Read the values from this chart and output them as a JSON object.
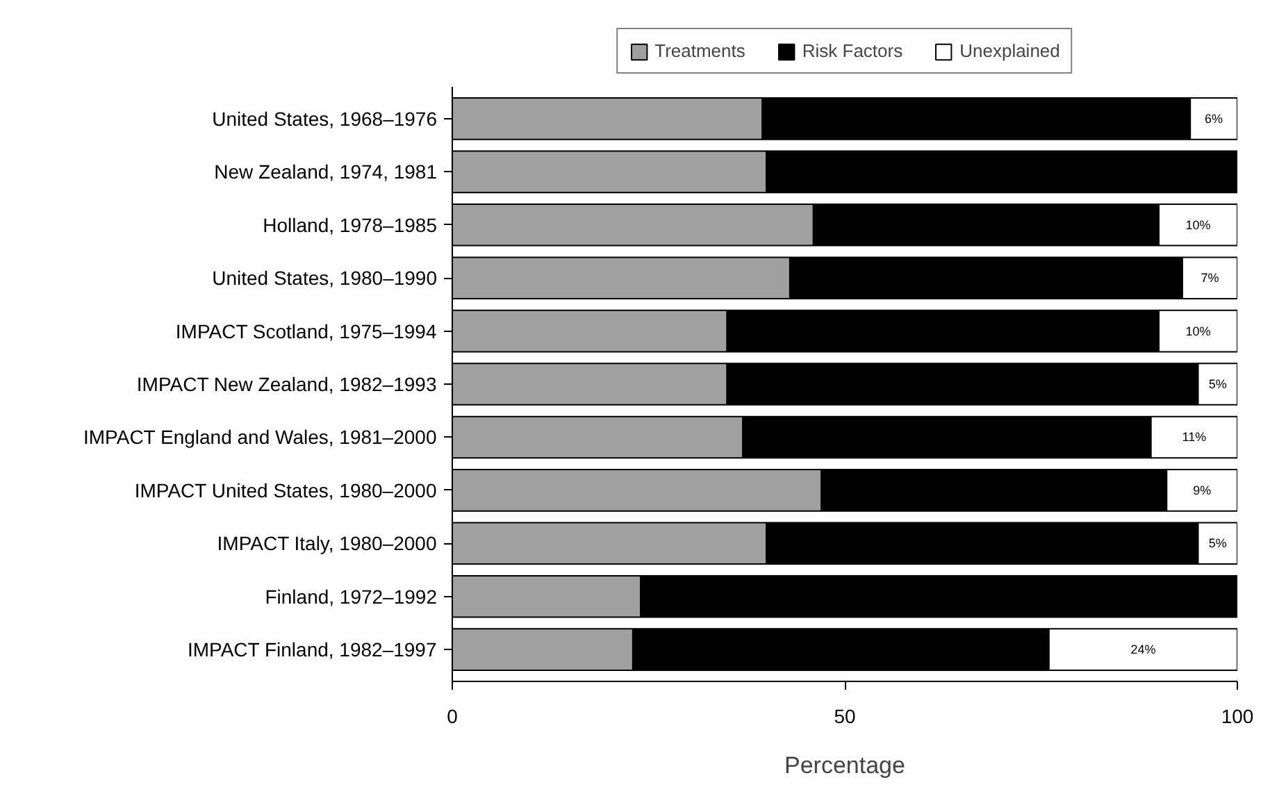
{
  "chart_data": {
    "type": "bar",
    "orientation": "horizontal",
    "stacked": true,
    "xlabel": "Percentage",
    "categories": [
      "United States, 1968–1976",
      "New Zealand, 1974, 1981",
      "Holland, 1978–1985",
      "United States, 1980–1990",
      "IMPACT Scotland, 1975–1994",
      "IMPACT New Zealand, 1982–1993",
      "IMPACT England and Wales, 1981–2000",
      "IMPACT United States, 1980–2000",
      "IMPACT Italy, 1980–2000",
      "Finland, 1972–1992",
      "IMPACT Finland, 1982–1997"
    ],
    "series": [
      {
        "name": "Treatments",
        "color": "#a0a0a0",
        "values": [
          39.5,
          40,
          46,
          43,
          35,
          35,
          37,
          47,
          40,
          24,
          23
        ]
      },
      {
        "name": "Risk Factors",
        "color": "#000000",
        "values": [
          54.5,
          60,
          44,
          50,
          55,
          60,
          52,
          44,
          55,
          76,
          53
        ]
      },
      {
        "name": "Unexplained",
        "color": "#ffffff",
        "values": [
          6,
          0,
          10,
          7,
          10,
          5,
          11,
          9,
          5,
          0,
          24
        ],
        "value_labels": [
          "6%",
          null,
          "10%",
          "7%",
          "10%",
          "5%",
          "11%",
          "9%",
          "5%",
          null,
          "24%"
        ]
      }
    ],
    "xlim": [
      0,
      100
    ],
    "xticks": [
      0,
      50,
      100
    ],
    "grid": false,
    "legend": "top"
  }
}
